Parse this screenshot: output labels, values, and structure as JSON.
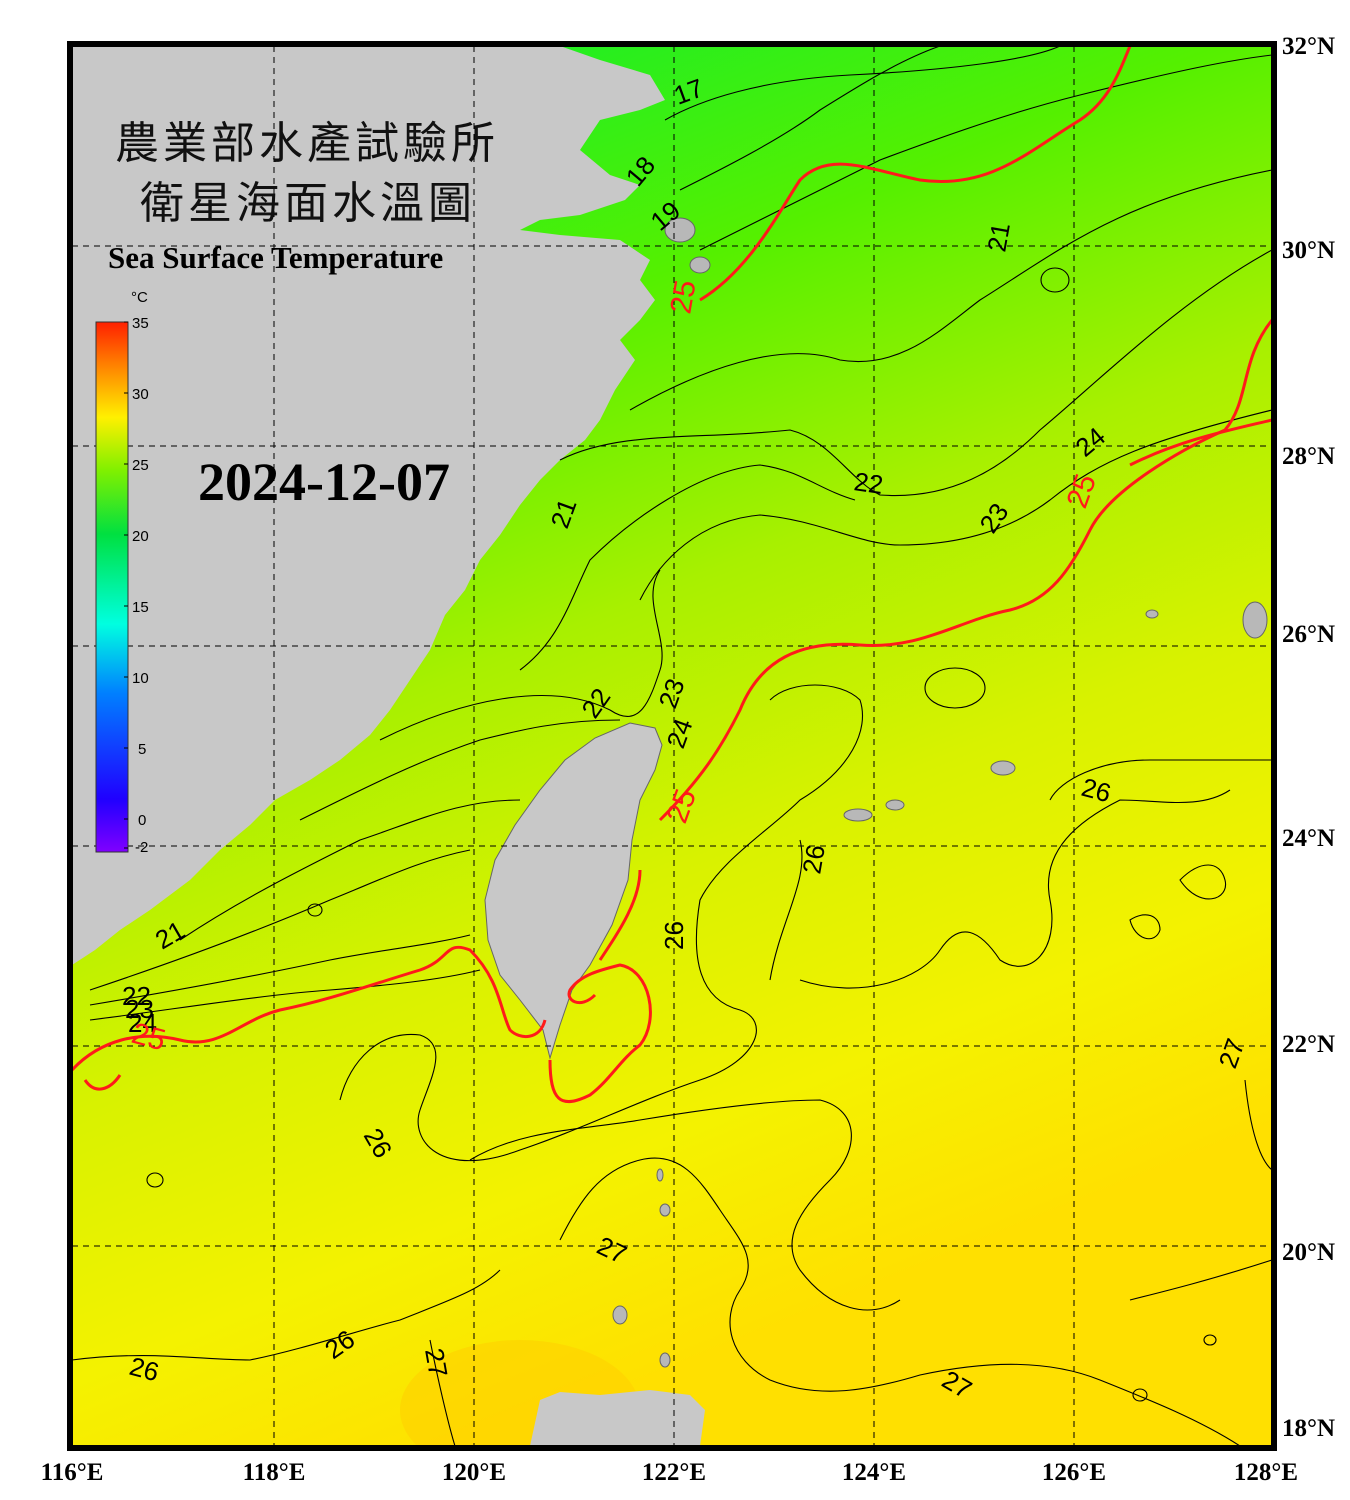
{
  "title": {
    "line1": "農業部水產試驗所",
    "line2": "衛星海面水溫圖",
    "english": "Sea Surface Temperature"
  },
  "date": "2024-12-07",
  "colorbar": {
    "unit": "°C",
    "ticks": [
      "35",
      "30",
      "25",
      "20",
      "15",
      "10",
      "5",
      "0",
      "-2"
    ]
  },
  "axes": {
    "lon_labels": [
      "116°E",
      "118°E",
      "120°E",
      "122°E",
      "124°E",
      "126°E",
      "128°E"
    ],
    "lat_labels": [
      "32°N",
      "30°N",
      "28°N",
      "26°N",
      "24°N",
      "22°N",
      "20°N",
      "18°N"
    ]
  },
  "contour_labels": {
    "black": [
      "17",
      "18",
      "19",
      "21",
      "22",
      "23",
      "24",
      "26",
      "27"
    ],
    "red": [
      "25"
    ]
  },
  "colors": {
    "land": "#c8c8c8",
    "frame": "#000000",
    "iso25": "#ff1a1a"
  }
}
